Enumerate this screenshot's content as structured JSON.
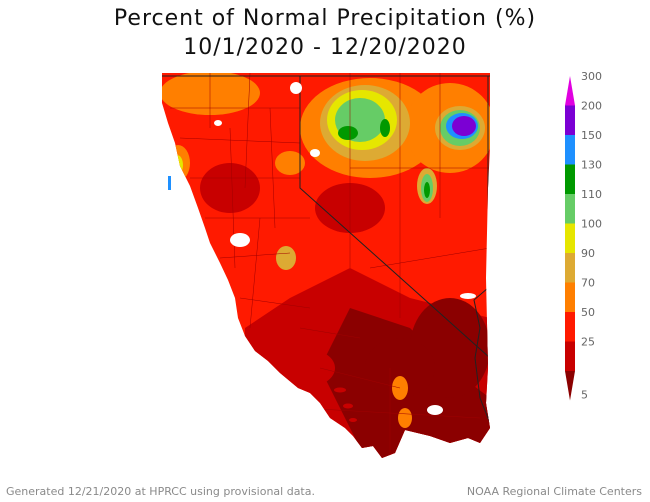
{
  "title_line1": "Percent of Normal Precipitation (%)",
  "title_line2": "10/1/2020 - 12/20/2020",
  "footer_left": "Generated 12/21/2020 at HPRCC using provisional data.",
  "footer_right": "NOAA Regional Climate Centers",
  "legend": {
    "levels": [
      "5",
      "25",
      "50",
      "70",
      "90",
      "100",
      "110",
      "130",
      "150",
      "200",
      "300"
    ],
    "colors": [
      "#8b0000",
      "#c80000",
      "#ff1a00",
      "#ff7f00",
      "#ddaa33",
      "#e6e600",
      "#66cc66",
      "#009900",
      "#1e90ff",
      "#7b00d4",
      "#e000e0"
    ]
  },
  "colors": {
    "ocean": "#ffffff",
    "state_lines": "#222222",
    "county_lines": "#a00000"
  }
}
